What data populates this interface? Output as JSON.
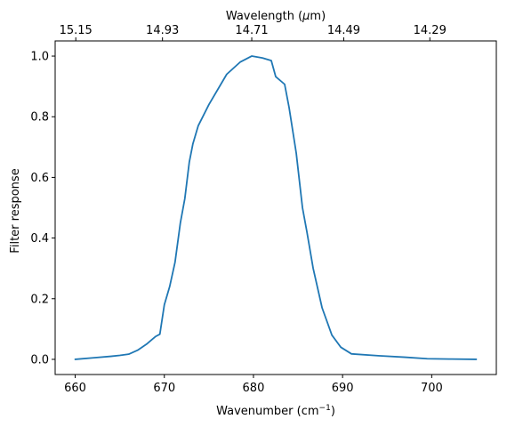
{
  "chart_data": {
    "type": "line",
    "title": "",
    "xlabel": "Wavenumber (cm",
    "xlabel_sup": "−1",
    "xlabel_suffix": ")",
    "ylabel": "Filter response",
    "top_xlabel": "Wavelength (",
    "top_xlabel_mu": "μ",
    "top_xlabel_suffix": "m)",
    "xlim": [
      657.75,
      707.25
    ],
    "ylim": [
      -0.05,
      1.05
    ],
    "x_ticks": [
      660,
      670,
      680,
      690,
      700
    ],
    "x_tick_labels": [
      "660",
      "670",
      "680",
      "690",
      "700"
    ],
    "y_ticks": [
      0.0,
      0.2,
      0.4,
      0.6,
      0.8,
      1.0
    ],
    "y_tick_labels": [
      "0.0",
      "0.2",
      "0.4",
      "0.6",
      "0.8",
      "1.0"
    ],
    "top_ticks": [
      15.15,
      14.93,
      14.71,
      14.49,
      14.29
    ],
    "top_tick_labels": [
      "15.15",
      "14.93",
      "14.71",
      "14.49",
      "14.29"
    ],
    "grid": false,
    "line_color": "#1f77b4",
    "series": [
      {
        "x": [
          660,
          662,
          664,
          665,
          666,
          667,
          668,
          669,
          669.5,
          670,
          670.6,
          671.2,
          671.8,
          672.3,
          672.8,
          673.2,
          673.8,
          675,
          677,
          678.5,
          679.8,
          681,
          682,
          682.5,
          683.5,
          684,
          684.8,
          685.5,
          686,
          686.7,
          687.7,
          688.8,
          689.8,
          691,
          694,
          697,
          699.5,
          702,
          705
        ],
        "y": [
          0.0,
          0.005,
          0.01,
          0.013,
          0.017,
          0.03,
          0.05,
          0.075,
          0.083,
          0.18,
          0.24,
          0.32,
          0.45,
          0.53,
          0.65,
          0.71,
          0.77,
          0.84,
          0.94,
          0.98,
          1.0,
          0.994,
          0.985,
          0.932,
          0.907,
          0.83,
          0.68,
          0.5,
          0.42,
          0.3,
          0.17,
          0.08,
          0.04,
          0.018,
          0.012,
          0.007,
          0.002,
          0.001,
          0.0
        ]
      }
    ]
  }
}
